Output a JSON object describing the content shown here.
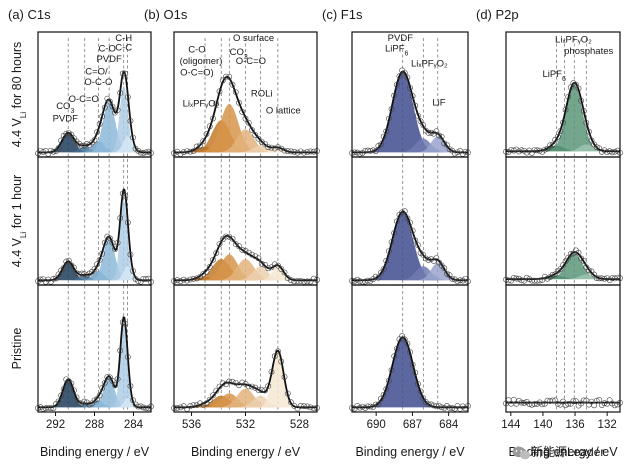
{
  "chart_data": {
    "type": "line",
    "rows": [
      {
        "id": "r80h",
        "label": "4.4 V_Li for 80 hours",
        "text_before": "4.4 V",
        "sub": "Li",
        "text_after": " for 80 hours"
      },
      {
        "id": "r1h",
        "label": "4.4 V_Li for 1 hour",
        "text_before": "4.4 V",
        "sub": "Li",
        "text_after": " for 1 hour"
      },
      {
        "id": "rp",
        "label": "Pristine",
        "text_before": "Pristine",
        "sub": "",
        "text_after": ""
      }
    ],
    "panels": [
      {
        "id": "C1s",
        "title": "(a) C1s",
        "xlabel": "Binding energy / eV",
        "x_range": [
          293.8,
          282.2
        ],
        "ticks": [
          292,
          288,
          284
        ],
        "ref_lines": [
          290.7,
          289.0,
          287.6,
          286.5,
          285.0,
          284.6
        ],
        "annotations": [
          {
            "text": "C-H",
            "x": 285.0,
            "y": 0.99,
            "sub": ""
          },
          {
            "text": "C-C",
            "x": 285.0,
            "y": 0.91,
            "sub": ""
          },
          {
            "text": "C-O",
            "x": 286.7,
            "y": 0.9,
            "sub": ""
          },
          {
            "text": "PVDF",
            "x": 286.5,
            "y": 0.81,
            "sub": ""
          },
          {
            "text": "C=O/",
            "x": 287.8,
            "y": 0.7,
            "sub": ""
          },
          {
            "text": "O-C-O",
            "x": 287.6,
            "y": 0.61,
            "sub": ""
          },
          {
            "text": "O-C=O",
            "x": 289.1,
            "y": 0.46,
            "sub": ""
          },
          {
            "text": "CO",
            "x": 291.0,
            "y": 0.4,
            "sub": "3"
          },
          {
            "text": "PVDF",
            "x": 291.0,
            "y": 0.29,
            "sub": ""
          }
        ],
        "colors": [
          "#1e3d5b",
          "#3f6e93",
          "#6f9dc3",
          "#8db8d8",
          "#aecde6",
          "#d6e7f4"
        ],
        "spectra": {
          "r80h": {
            "baseline": 0.04,
            "peaks": [
              {
                "center": 290.7,
                "amp": 0.17,
                "fwhm": 1.5
              },
              {
                "center": 289.0,
                "amp": 0.05,
                "fwhm": 1.4
              },
              {
                "center": 287.6,
                "amp": 0.1,
                "fwhm": 1.4
              },
              {
                "center": 286.5,
                "amp": 0.44,
                "fwhm": 1.5
              },
              {
                "center": 285.0,
                "amp": 0.58,
                "fwhm": 1.0
              },
              {
                "center": 284.6,
                "amp": 0.14,
                "fwhm": 1.1
              }
            ]
          },
          "r1h": {
            "baseline": 0.04,
            "peaks": [
              {
                "center": 290.7,
                "amp": 0.16,
                "fwhm": 1.4
              },
              {
                "center": 289.0,
                "amp": 0.04,
                "fwhm": 1.3
              },
              {
                "center": 287.6,
                "amp": 0.08,
                "fwhm": 1.3
              },
              {
                "center": 286.5,
                "amp": 0.36,
                "fwhm": 1.4
              },
              {
                "center": 285.0,
                "amp": 0.68,
                "fwhm": 0.9
              },
              {
                "center": 284.6,
                "amp": 0.12,
                "fwhm": 1.0
              }
            ]
          },
          "rp": {
            "baseline": 0.04,
            "peaks": [
              {
                "center": 290.7,
                "amp": 0.24,
                "fwhm": 1.3
              },
              {
                "center": 289.0,
                "amp": 0.03,
                "fwhm": 1.2
              },
              {
                "center": 287.6,
                "amp": 0.06,
                "fwhm": 1.2
              },
              {
                "center": 286.5,
                "amp": 0.26,
                "fwhm": 1.3
              },
              {
                "center": 285.0,
                "amp": 0.72,
                "fwhm": 0.85
              },
              {
                "center": 284.6,
                "amp": 0.08,
                "fwhm": 0.9
              }
            ]
          }
        }
      },
      {
        "id": "O1s",
        "title": "(b) O1s",
        "xlabel": "Binding energy / eV",
        "x_range": [
          537.3,
          526.7
        ],
        "ticks": [
          536,
          532,
          528
        ],
        "ref_lines": [
          535.0,
          533.8,
          533.2,
          532.0,
          530.9,
          529.6
        ],
        "annotations": [
          {
            "text": "O surface",
            "x": 531.4,
            "y": 0.99,
            "sub": ""
          },
          {
            "text": "C-O",
            "x": 535.6,
            "y": 0.89,
            "sub": ""
          },
          {
            "text": "CO",
            "x": 532.5,
            "y": 0.87,
            "sub": "3"
          },
          {
            "text": "(oligomer)",
            "x": 535.3,
            "y": 0.79,
            "sub": ""
          },
          {
            "text": "O-C=O",
            "x": 531.6,
            "y": 0.79,
            "sub": ""
          },
          {
            "text": "O-C=O)",
            "x": 535.6,
            "y": 0.69,
            "sub": ""
          },
          {
            "text": "ROLi",
            "x": 530.8,
            "y": 0.51,
            "sub": ""
          },
          {
            "text": "LiₓPFᵧO₂",
            "x": 535.3,
            "y": 0.42,
            "sub": ""
          },
          {
            "text": "O lattice",
            "x": 529.2,
            "y": 0.36,
            "sub": ""
          }
        ],
        "colors": [
          "#9c5a17",
          "#c27a2b",
          "#d7954a",
          "#e3b37c",
          "#ecd0ae",
          "#f6e7d3"
        ],
        "spectra": {
          "r80h": {
            "baseline": 0.04,
            "peaks": [
              {
                "center": 535.0,
                "amp": 0.05,
                "fwhm": 1.4
              },
              {
                "center": 533.8,
                "amp": 0.28,
                "fwhm": 1.6
              },
              {
                "center": 533.2,
                "amp": 0.42,
                "fwhm": 1.6
              },
              {
                "center": 532.0,
                "amp": 0.2,
                "fwhm": 1.5
              },
              {
                "center": 530.9,
                "amp": 0.06,
                "fwhm": 1.3
              },
              {
                "center": 529.6,
                "amp": 0.04,
                "fwhm": 1.0
              }
            ]
          },
          "r1h": {
            "baseline": 0.04,
            "peaks": [
              {
                "center": 535.0,
                "amp": 0.03,
                "fwhm": 1.3
              },
              {
                "center": 533.8,
                "amp": 0.18,
                "fwhm": 1.6
              },
              {
                "center": 533.2,
                "amp": 0.22,
                "fwhm": 1.5
              },
              {
                "center": 532.0,
                "amp": 0.18,
                "fwhm": 1.5
              },
              {
                "center": 530.9,
                "amp": 0.12,
                "fwhm": 1.3
              },
              {
                "center": 529.6,
                "amp": 0.12,
                "fwhm": 1.0
              }
            ]
          },
          "rp": {
            "baseline": 0.04,
            "peaks": [
              {
                "center": 535.0,
                "amp": 0.02,
                "fwhm": 1.3
              },
              {
                "center": 533.8,
                "amp": 0.1,
                "fwhm": 1.5
              },
              {
                "center": 533.2,
                "amp": 0.12,
                "fwhm": 1.5
              },
              {
                "center": 532.0,
                "amp": 0.16,
                "fwhm": 1.5
              },
              {
                "center": 530.9,
                "amp": 0.1,
                "fwhm": 1.3
              },
              {
                "center": 529.6,
                "amp": 0.48,
                "fwhm": 1.0
              }
            ]
          }
        }
      },
      {
        "id": "F1s",
        "title": "(c) F1s",
        "xlabel": "Binding energy / eV",
        "x_range": [
          692.0,
          682.4
        ],
        "ticks": [
          690,
          687,
          684
        ],
        "ref_lines": [
          687.8,
          686.1,
          684.9
        ],
        "annotations": [
          {
            "text": "PVDF",
            "x": 688.0,
            "y": 0.99,
            "sub": ""
          },
          {
            "text": "LiPF",
            "x": 688.3,
            "y": 0.9,
            "sub": "6"
          },
          {
            "text": "LiₓPFᵧO₂",
            "x": 685.6,
            "y": 0.77,
            "sub": ""
          },
          {
            "text": "LiF",
            "x": 684.8,
            "y": 0.43,
            "sub": ""
          }
        ],
        "colors": [
          "#3f4c8f",
          "#717bb0",
          "#9aa3cc"
        ],
        "spectra": {
          "r80h": {
            "baseline": 0.04,
            "peaks": [
              {
                "center": 687.8,
                "amp": 0.7,
                "fwhm": 2.0
              },
              {
                "center": 686.1,
                "amp": 0.12,
                "fwhm": 1.5
              },
              {
                "center": 684.9,
                "amp": 0.14,
                "fwhm": 1.3
              }
            ]
          },
          "r1h": {
            "baseline": 0.04,
            "peaks": [
              {
                "center": 687.8,
                "amp": 0.58,
                "fwhm": 2.0
              },
              {
                "center": 686.1,
                "amp": 0.12,
                "fwhm": 1.5
              },
              {
                "center": 684.9,
                "amp": 0.15,
                "fwhm": 1.3
              }
            ]
          },
          "rp": {
            "baseline": 0.04,
            "peaks": [
              {
                "center": 687.8,
                "amp": 0.6,
                "fwhm": 2.0
              }
            ]
          }
        }
      },
      {
        "id": "P2p",
        "title": "(d) P2p",
        "xlabel": "Binding energy / eV",
        "x_range": [
          144.6,
          130.4
        ],
        "ticks": [
          144,
          140,
          136,
          132
        ],
        "ref_lines": [
          138.3,
          137.3,
          136.1,
          134.6
        ],
        "annotations": [
          {
            "text": "LiₓPFᵧO₂",
            "x": 136.2,
            "y": 0.98,
            "sub": ""
          },
          {
            "text": "phosphates",
            "x": 134.3,
            "y": 0.88,
            "sub": ""
          },
          {
            "text": "LiPF",
            "x": 138.6,
            "y": 0.68,
            "sub": "6"
          }
        ],
        "colors": [
          "#2e6b4e",
          "#5b9778",
          "#9cc4ae"
        ],
        "spectra": {
          "r80h": {
            "baseline": 0.05,
            "peaks": [
              {
                "center": 138.3,
                "amp": 0.05,
                "fwhm": 2.2
              },
              {
                "center": 136.1,
                "amp": 0.58,
                "fwhm": 2.4
              },
              {
                "center": 134.6,
                "amp": 0.06,
                "fwhm": 2.0
              }
            ]
          },
          "r1h": {
            "baseline": 0.05,
            "peaks": [
              {
                "center": 138.3,
                "amp": 0.03,
                "fwhm": 2.2
              },
              {
                "center": 136.1,
                "amp": 0.22,
                "fwhm": 2.4
              },
              {
                "center": 134.6,
                "amp": 0.04,
                "fwhm": 2.0
              }
            ]
          },
          "rp": {
            "baseline": 0.08,
            "peaks": []
          }
        }
      }
    ]
  },
  "watermark": "新能源Leader"
}
